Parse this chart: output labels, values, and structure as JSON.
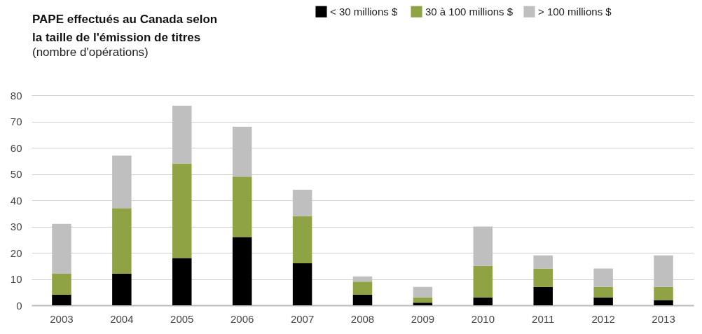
{
  "chart_data": {
    "type": "bar",
    "title": "PAPE effectués au Canada selon\nla taille de l'émission de titres",
    "subtitle": "(nombre d'opérations)",
    "categories": [
      "2003",
      "2004",
      "2005",
      "2006",
      "2007",
      "2008",
      "2009",
      "2010",
      "2011",
      "2012",
      "2013"
    ],
    "stacked": true,
    "series": [
      {
        "name": "< 30  millions $",
        "color": "#000000",
        "values": [
          4,
          12,
          18,
          26,
          16,
          4,
          1,
          3,
          7,
          3,
          2
        ]
      },
      {
        "name": "30 à 100 millions $",
        "color": "#8fa344",
        "values": [
          8,
          25,
          36,
          23,
          18,
          5,
          2,
          12,
          7,
          4,
          5
        ]
      },
      {
        "name": "> 100 millions $",
        "color": "#bfbfbf",
        "values": [
          19,
          20,
          22,
          19,
          10,
          2,
          4,
          15,
          5,
          7,
          12
        ]
      }
    ],
    "ylim": [
      0,
      80
    ],
    "yticks": [
      0,
      10,
      20,
      30,
      40,
      50,
      60,
      70,
      80
    ],
    "grid": "y",
    "legend": "top right"
  }
}
